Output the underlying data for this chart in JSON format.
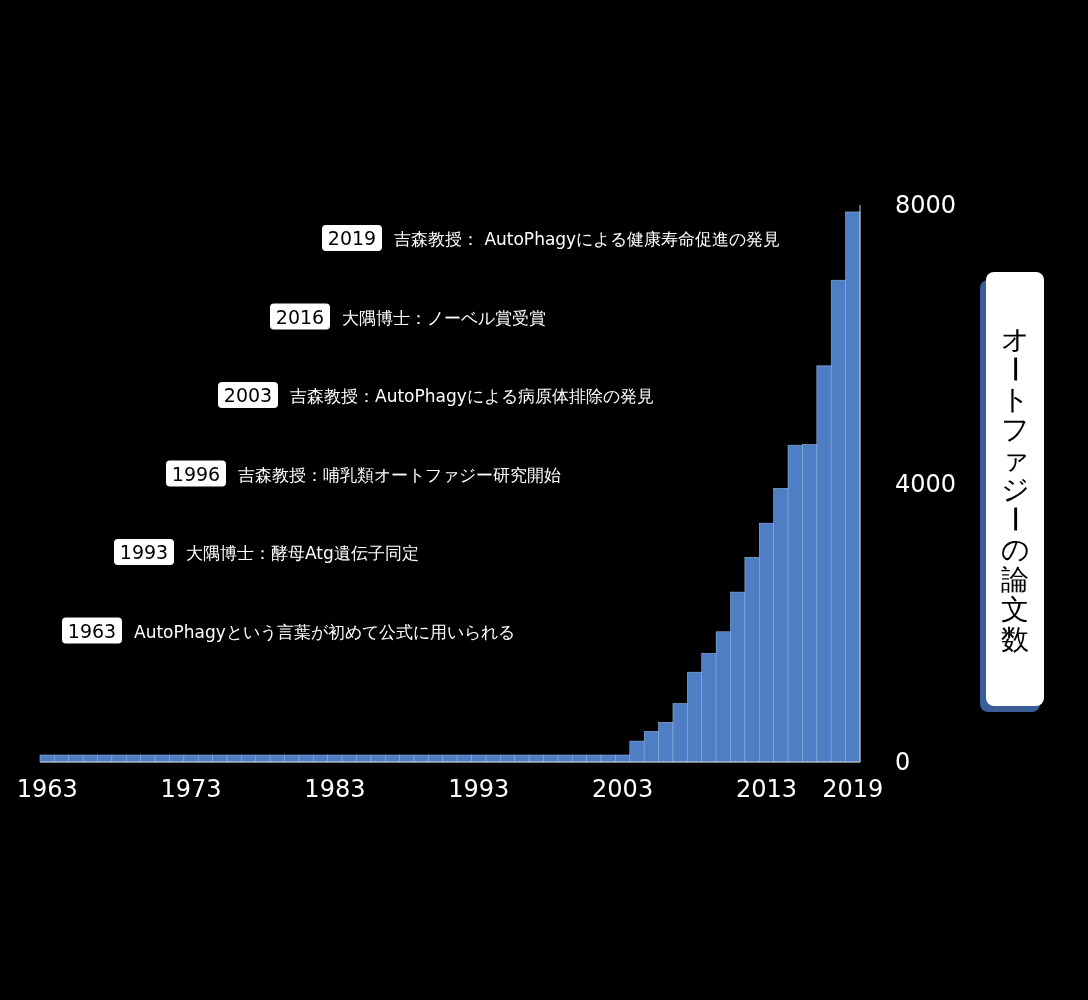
{
  "chart_data": {
    "type": "bar",
    "ylabel": "オートファジーの論文数",
    "x": [
      1963,
      1964,
      1965,
      1966,
      1967,
      1968,
      1969,
      1970,
      1971,
      1972,
      1973,
      1974,
      1975,
      1976,
      1977,
      1978,
      1979,
      1980,
      1981,
      1982,
      1983,
      1984,
      1985,
      1986,
      1987,
      1988,
      1989,
      1990,
      1991,
      1992,
      1993,
      1994,
      1995,
      1996,
      1997,
      1998,
      1999,
      2000,
      2001,
      2002,
      2003,
      2004,
      2005,
      2006,
      2007,
      2008,
      2009,
      2010,
      2011,
      2012,
      2013,
      2014,
      2015,
      2016,
      2017,
      2018,
      2019
    ],
    "values": [
      100,
      100,
      100,
      100,
      100,
      100,
      100,
      100,
      100,
      100,
      100,
      100,
      100,
      100,
      100,
      100,
      100,
      100,
      100,
      100,
      100,
      100,
      100,
      100,
      100,
      100,
      100,
      100,
      100,
      100,
      100,
      100,
      100,
      100,
      100,
      100,
      100,
      100,
      100,
      100,
      100,
      300,
      440,
      570,
      840,
      1290,
      1560,
      1870,
      2440,
      2940,
      3430,
      3930,
      4550,
      4560,
      5690,
      6920,
      7900
    ],
    "color": "#4f7ec4",
    "xlim": [
      1962.5,
      2019.5
    ],
    "xticks": [
      1963,
      1973,
      1983,
      1993,
      2003,
      2013,
      2019
    ],
    "ylim": [
      0,
      8000
    ],
    "yticks": [
      0,
      4000,
      8000
    ],
    "grid": false,
    "annotations": [
      "2019",
      "吉森教授： AutoPhagyによる健康寿命促進の発見",
      "2016",
      "大隅博士：ノーベル賞受賞",
      "2003",
      "吉森教授：AutoPhagyによる病原体排除の発見",
      "1996",
      "吉森教授：哺乳類オートファジー研究開始",
      "1993",
      "大隅博士：酵母Atg遺伝子同定",
      "1963",
      "AutoPhagyという言葉が初めて公式に用いられる"
    ]
  }
}
